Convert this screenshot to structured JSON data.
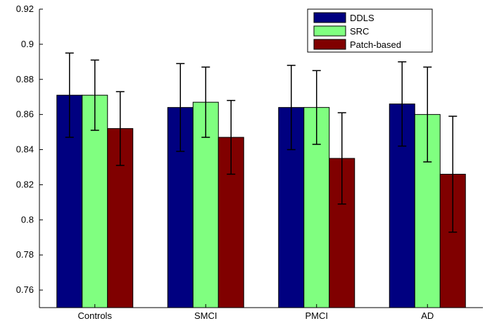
{
  "chart_data": {
    "type": "bar",
    "categories": [
      "Controls",
      "SMCI",
      "PMCI",
      "AD"
    ],
    "series": [
      {
        "name": "DDLS",
        "color": "#000080",
        "values": [
          0.871,
          0.864,
          0.864,
          0.866
        ],
        "errors": [
          0.024,
          0.025,
          0.024,
          0.024
        ]
      },
      {
        "name": "SRC",
        "color": "#80ff80",
        "values": [
          0.871,
          0.867,
          0.864,
          0.86
        ],
        "errors": [
          0.02,
          0.02,
          0.021,
          0.027
        ]
      },
      {
        "name": "Patch-based",
        "color": "#800000",
        "values": [
          0.852,
          0.847,
          0.835,
          0.826
        ],
        "errors": [
          0.021,
          0.021,
          0.026,
          0.033
        ]
      }
    ],
    "yticks": [
      "0.76",
      "0.78",
      "0.8",
      "0.82",
      "0.84",
      "0.86",
      "0.88",
      "0.9",
      "0.92"
    ],
    "ylim": [
      0.75,
      0.92
    ],
    "legend_position": "top-right",
    "grid": false
  }
}
